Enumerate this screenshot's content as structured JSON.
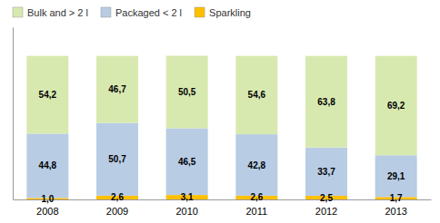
{
  "chart_data": {
    "type": "bar",
    "stacked": true,
    "categories": [
      "2008",
      "2009",
      "2010",
      "2011",
      "2012",
      "2013"
    ],
    "series": [
      {
        "name": "Sparkling",
        "color": "#FFC000",
        "values": [
          1.0,
          2.6,
          3.1,
          2.6,
          2.5,
          1.7
        ],
        "value_labels": [
          "1,0",
          "2,6",
          "3,1",
          "2,6",
          "2,5",
          "1,7"
        ]
      },
      {
        "name": "Packaged < 2 l",
        "color": "#B8CCE4",
        "values": [
          44.8,
          50.7,
          46.5,
          42.8,
          33.7,
          29.1
        ],
        "value_labels": [
          "44,8",
          "50,7",
          "46,5",
          "42,8",
          "33,7",
          "29,1"
        ]
      },
      {
        "name": "Bulk and > 2 l",
        "color": "#D8E9B0",
        "values": [
          54.2,
          46.7,
          50.5,
          54.6,
          63.8,
          69.2
        ],
        "value_labels": [
          "54,2",
          "46,7",
          "50,5",
          "54,6",
          "63,8",
          "69,2"
        ]
      }
    ],
    "ylim": [
      0,
      120
    ],
    "grid": false,
    "legend": "top left",
    "data_labels": true,
    "tick_labels": "x"
  }
}
